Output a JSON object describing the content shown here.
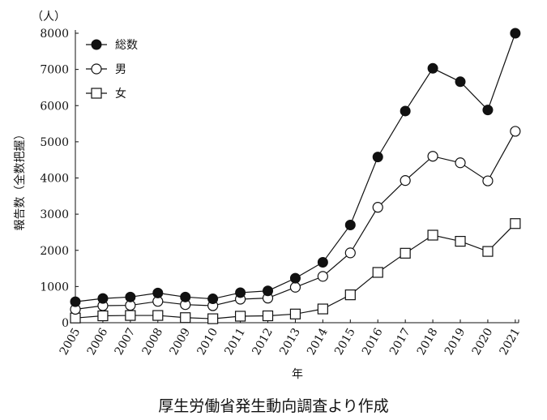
{
  "chart_data": {
    "type": "line",
    "unit_label": "（人）",
    "ylabel": "報告数（全数把握）",
    "xlabel": "年",
    "ylim": [
      0,
      8000
    ],
    "yticks": [
      0,
      1000,
      2000,
      3000,
      4000,
      5000,
      6000,
      7000,
      8000
    ],
    "categories": [
      "2005",
      "2006",
      "2007",
      "2008",
      "2009",
      "2010",
      "2011",
      "2012",
      "2013",
      "2014",
      "2015",
      "2016",
      "2017",
      "2018",
      "2019",
      "2020",
      "2021"
    ],
    "series": [
      {
        "name": "総数",
        "marker": "filled-circle",
        "values": [
          580,
          670,
          710,
          820,
          710,
          660,
          830,
          880,
          1230,
          1670,
          2700,
          4580,
          5850,
          7030,
          6660,
          5880,
          8000
        ]
      },
      {
        "name": "男",
        "marker": "open-circle",
        "values": [
          370,
          470,
          480,
          590,
          500,
          470,
          650,
          680,
          980,
          1280,
          1930,
          3190,
          3930,
          4600,
          4420,
          3920,
          5290
        ]
      },
      {
        "name": "女",
        "marker": "open-square",
        "values": [
          130,
          190,
          200,
          200,
          140,
          110,
          180,
          190,
          240,
          380,
          770,
          1390,
          1920,
          2420,
          2250,
          1970,
          2740
        ]
      }
    ],
    "legend": "top-left",
    "source": "厚生労働省発生動向調査より作成"
  }
}
